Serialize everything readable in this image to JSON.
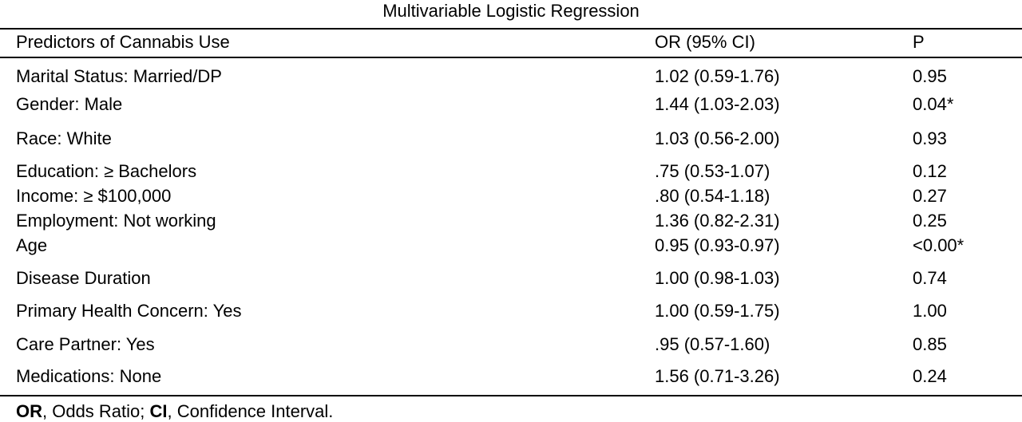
{
  "title": "Multivariable Logistic Regression",
  "table": {
    "header": [
      "Predictors of Cannabis Use",
      "OR (95% CI)",
      "P"
    ],
    "rows": [
      [
        "Marital Status: Married/DP",
        "1.02 (0.59-1.76)",
        "0.95"
      ],
      [
        "Gender: Male",
        "1.44 (1.03-2.03)",
        "0.04*"
      ],
      [
        "Race: White",
        "1.03 (0.56-2.00)",
        "0.93"
      ],
      [
        "Education:  ≥ Bachelors",
        ".75 (0.53-1.07)",
        "0.12"
      ],
      [
        "Income: ≥ $100,000",
        ".80 (0.54-1.18)",
        "0.27"
      ],
      [
        "Employment: Not working",
        "1.36 (0.82-2.31)",
        "0.25"
      ],
      [
        "Age",
        "0.95 (0.93-0.97)",
        "<0.00*"
      ],
      [
        "Disease Duration",
        "1.00 (0.98-1.03)",
        "0.74"
      ],
      [
        "Primary Health Concern: Yes",
        "1.00 (0.59-1.75)",
        "1.00"
      ],
      [
        "Care Partner: Yes",
        ".95 (0.57-1.60)",
        "0.85"
      ],
      [
        "Medications: None",
        "1.56 (0.71-3.26)",
        "0.24"
      ]
    ]
  },
  "footnote": [
    "OR",
    ", Odds Ratio; ",
    "CI",
    ", Confidence Interval."
  ]
}
